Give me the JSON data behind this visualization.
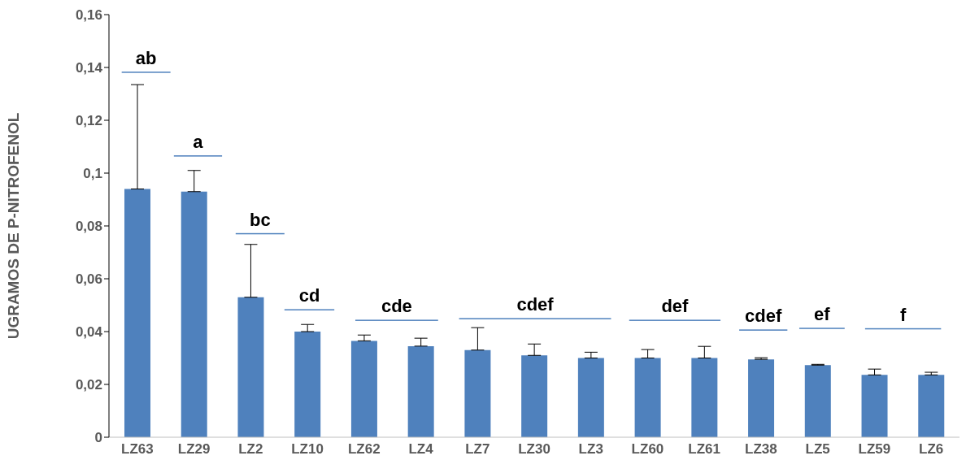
{
  "chart_data": {
    "type": "bar",
    "ylabel": "UGRAMOS DE P-NITROFENOL",
    "categories": [
      "LZ63",
      "LZ29",
      "LZ2",
      "LZ10",
      "LZ62",
      "LZ4",
      "LZ7",
      "LZ30",
      "LZ3",
      "LZ60",
      "LZ61",
      "LZ38",
      "LZ5",
      "LZ59",
      "LZ6"
    ],
    "values": [
      0.094,
      0.093,
      0.053,
      0.04,
      0.0365,
      0.0345,
      0.033,
      0.031,
      0.03,
      0.03,
      0.03,
      0.0295,
      0.0273,
      0.0236,
      0.0236
    ],
    "errors": [
      [
        0.094,
        0.1335
      ],
      [
        0.093,
        0.101
      ],
      [
        0.053,
        0.073
      ],
      [
        0.04,
        0.0427
      ],
      [
        0.0365,
        0.0387
      ],
      [
        0.0345,
        0.0375
      ],
      [
        0.033,
        0.0415
      ],
      [
        0.031,
        0.0353
      ],
      [
        0.03,
        0.0322
      ],
      [
        0.03,
        0.0332
      ],
      [
        0.03,
        0.0344
      ],
      [
        0.0295,
        0.0301
      ],
      [
        0.0273,
        0.0276
      ],
      [
        0.0236,
        0.0258
      ],
      [
        0.0236,
        0.0246
      ]
    ],
    "color": "#4f81bd",
    "ylim": [
      0,
      0.16
    ],
    "yticks": [
      {
        "value": 0,
        "label": "0"
      },
      {
        "value": 0.02,
        "label": "0,02"
      },
      {
        "value": 0.04,
        "label": "0,04"
      },
      {
        "value": 0.06,
        "label": "0,06"
      },
      {
        "value": 0.08,
        "label": "0,08"
      },
      {
        "value": 0.1,
        "label": "0,1"
      },
      {
        "value": 0.12,
        "label": "0,12"
      },
      {
        "value": 0.14,
        "label": "0,14"
      },
      {
        "value": 0.16,
        "label": "0,16"
      }
    ],
    "grid": false,
    "legend": false,
    "annotations": [
      "ab",
      "a",
      "bc",
      "cd",
      "cde",
      "cdef",
      "def",
      "cdef",
      "ef",
      "f"
    ]
  }
}
